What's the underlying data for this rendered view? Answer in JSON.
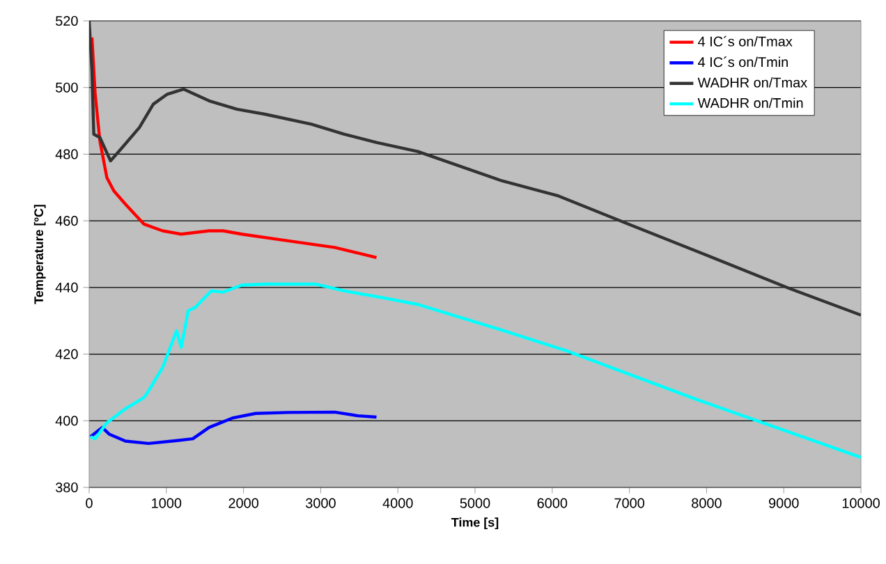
{
  "chart_data": {
    "type": "line",
    "xlabel": "Time [s]",
    "ylabel": "Temperature [ºC]",
    "xlim": [
      0,
      10000
    ],
    "ylim": [
      380,
      520
    ],
    "xticks": [
      0,
      1000,
      2000,
      3000,
      4000,
      5000,
      6000,
      7000,
      8000,
      9000,
      10000
    ],
    "yticks": [
      380,
      400,
      420,
      440,
      460,
      480,
      500,
      520
    ],
    "grid": "y",
    "legend": "top right",
    "series": [
      {
        "name": "4 IC´s on/Tmax",
        "color": "#ff0000",
        "x": [
          36,
          78,
          139,
          229,
          319,
          470,
          711,
          952,
          1193,
          1554,
          1735,
          1976,
          2578,
          3181,
          3723
        ],
        "values": [
          515,
          498,
          484,
          473,
          469,
          465,
          459,
          457,
          456,
          457,
          457,
          456,
          454,
          452,
          449
        ]
      },
      {
        "name": "4 IC´s on/Tmin",
        "color": "#0000ff",
        "x": [
          18,
          169,
          259,
          470,
          771,
          1072,
          1343,
          1554,
          1855,
          2157,
          2578,
          3181,
          3482,
          3723
        ],
        "values": [
          395.2,
          398,
          396,
          393.9,
          393.2,
          393.9,
          394.6,
          398,
          400.8,
          402.2,
          402.5,
          402.6,
          401.5,
          401.1
        ]
      },
      {
        "name": "WADHR on/Tmax",
        "color": "#333333",
        "x": [
          0,
          36,
          60,
          139,
          277,
          410,
          651,
          831,
          1012,
          1223,
          1554,
          1916,
          2277,
          2880,
          3301,
          3723,
          4260,
          5349,
          6065,
          6968,
          7870,
          9073,
          10000
        ],
        "values": [
          520,
          505,
          486,
          485,
          478,
          481.5,
          488,
          495,
          498,
          499.5,
          496,
          493.5,
          492,
          489,
          486,
          483.5,
          480.8,
          472,
          467.6,
          459.2,
          450.9,
          439.7,
          431.7
        ]
      },
      {
        "name": "WADHR on/Tmin",
        "color": "#00ffff",
        "x": [
          18,
          78,
          229,
          470,
          711,
          771,
          952,
          1133,
          1193,
          1283,
          1374,
          1584,
          1735,
          1976,
          2277,
          2940,
          3301,
          3783,
          4260,
          5349,
          6185,
          7870,
          10000
        ],
        "values": [
          395.2,
          394.6,
          399.4,
          403.6,
          407,
          409,
          416,
          427,
          422,
          433,
          434,
          439,
          438.6,
          440.7,
          441,
          441,
          439,
          437,
          434.9,
          427.2,
          421,
          406.4,
          389
        ]
      }
    ]
  }
}
